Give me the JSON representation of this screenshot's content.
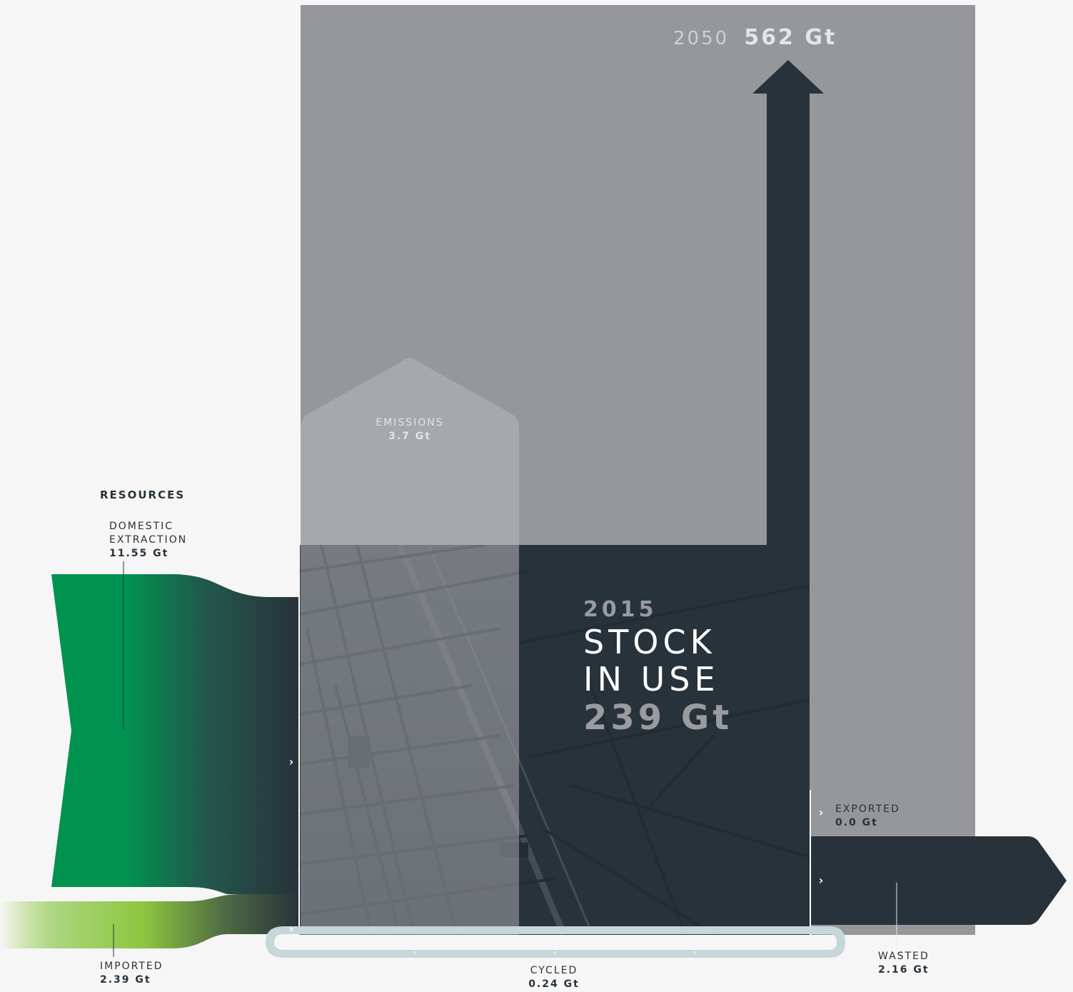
{
  "header": {
    "resources_title": "RESOURCES"
  },
  "projection": {
    "year": "2050",
    "value": "562 Gt"
  },
  "stock": {
    "year": "2015",
    "title_line1": "STOCK",
    "title_line2": "IN USE",
    "value": "239 Gt"
  },
  "flows": {
    "domestic_extraction": {
      "label_line1": "DOMESTIC",
      "label_line2": "EXTRACTION",
      "value": "11.55 Gt"
    },
    "imported": {
      "label": "IMPORTED",
      "value": "2.39 Gt"
    },
    "emissions": {
      "label": "EMISSIONS",
      "value": "3.7 Gt"
    },
    "exported": {
      "label": "EXPORTED",
      "value": "0.0 Gt"
    },
    "wasted": {
      "label": "WASTED",
      "value": "2.16 Gt"
    },
    "cycled": {
      "label": "CYCLED",
      "value": "0.24 Gt"
    }
  },
  "icons": {
    "flow_chevron": "›",
    "return_chevron": "‹"
  },
  "colors": {
    "background": "#f6f6f6",
    "projection_panel": "#96979b",
    "stock_dark": "#28323a",
    "extraction_green": "#009350",
    "imported_green": "#8dc63f",
    "cycled_loop": "#c7d6d8",
    "emissions_overlay": "#bcbdc0"
  }
}
